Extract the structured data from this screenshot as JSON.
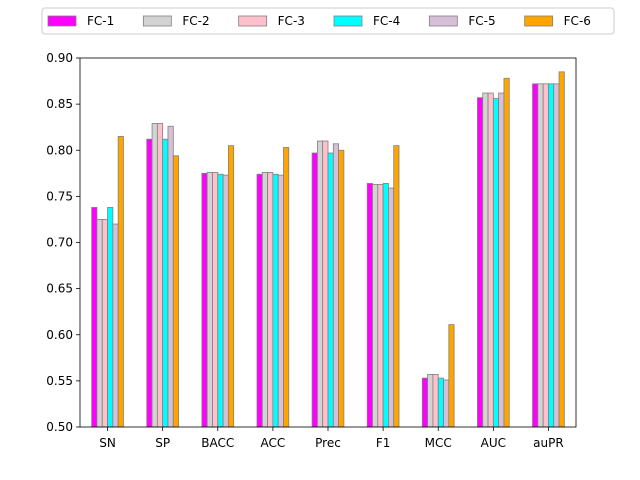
{
  "chart_data": {
    "type": "bar",
    "categories": [
      "SN",
      "SP",
      "BACC",
      "ACC",
      "Prec",
      "F1",
      "MCC",
      "AUC",
      "auPR"
    ],
    "series": [
      {
        "name": "FC-1",
        "color": "#ff00ff",
        "values": [
          0.738,
          0.812,
          0.775,
          0.774,
          0.797,
          0.764,
          0.553,
          0.857,
          0.872
        ]
      },
      {
        "name": "FC-2",
        "color": "#d3d3d3",
        "values": [
          0.725,
          0.829,
          0.776,
          0.776,
          0.81,
          0.763,
          0.557,
          0.862,
          0.872
        ]
      },
      {
        "name": "FC-3",
        "color": "#ffc0cb",
        "values": [
          0.725,
          0.829,
          0.776,
          0.776,
          0.81,
          0.763,
          0.557,
          0.862,
          0.872
        ]
      },
      {
        "name": "FC-4",
        "color": "#00ffff",
        "values": [
          0.738,
          0.812,
          0.774,
          0.774,
          0.797,
          0.764,
          0.553,
          0.856,
          0.872
        ]
      },
      {
        "name": "FC-5",
        "color": "#d8bfd8",
        "values": [
          0.72,
          0.826,
          0.773,
          0.773,
          0.807,
          0.759,
          0.551,
          0.862,
          0.872
        ]
      },
      {
        "name": "FC-6",
        "color": "#ffa500",
        "values": [
          0.815,
          0.794,
          0.805,
          0.803,
          0.8,
          0.805,
          0.611,
          0.878,
          0.885
        ]
      }
    ],
    "title": "",
    "xlabel": "",
    "ylabel": "",
    "ylim": [
      0.5,
      0.9
    ],
    "yticks": [
      "0.50",
      "0.55",
      "0.60",
      "0.65",
      "0.70",
      "0.75",
      "0.80",
      "0.85",
      "0.90"
    ],
    "grid": false,
    "legend": {
      "placement": "top-center",
      "columns": 6
    },
    "bar_edge_color": "#808080"
  }
}
